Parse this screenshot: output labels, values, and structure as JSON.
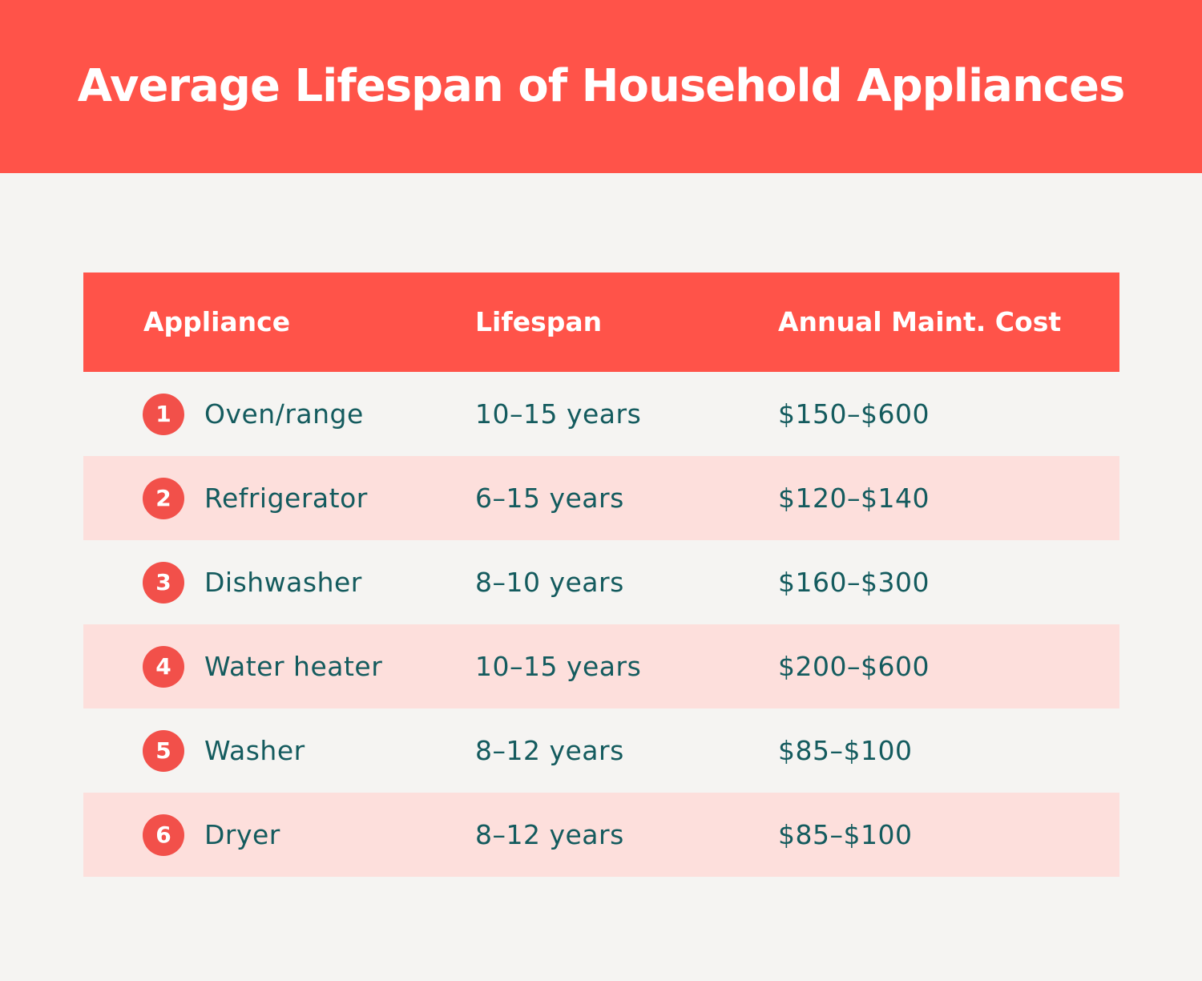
{
  "title": "Average Lifespan of Household Appliances",
  "table": {
    "headers": [
      "Appliance",
      "Lifespan",
      "Annual Maint. Cost"
    ],
    "rows": [
      {
        "number": "1",
        "appliance": "Oven/range",
        "lifespan": "10–15 years",
        "cost": "$150–$600"
      },
      {
        "number": "2",
        "appliance": "Refrigerator",
        "lifespan": "6–15 years",
        "cost": "$120–$140"
      },
      {
        "number": "3",
        "appliance": "Dishwasher",
        "lifespan": "8–10 years",
        "cost": "$160–$300"
      },
      {
        "number": "4",
        "appliance": "Water heater",
        "lifespan": "10–15 years",
        "cost": "$200–$600"
      },
      {
        "number": "5",
        "appliance": "Washer",
        "lifespan": "8–12 years",
        "cost": "$85–$100"
      },
      {
        "number": "6",
        "appliance": "Dryer",
        "lifespan": "8–12 years",
        "cost": "$85–$100"
      }
    ]
  },
  "colors": {
    "accent": "#ff5349",
    "row_shade": "#fddfdc",
    "text": "#145b5e",
    "background": "#f5f4f2"
  }
}
